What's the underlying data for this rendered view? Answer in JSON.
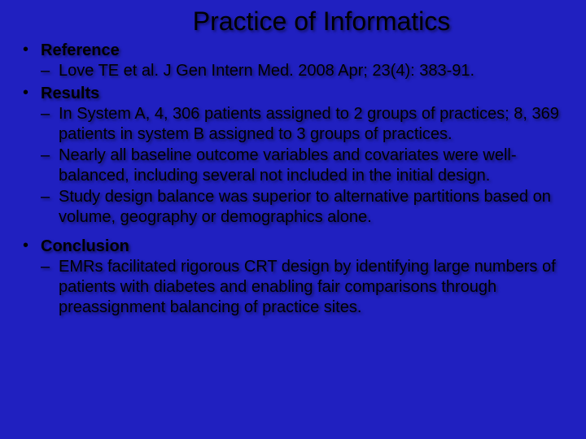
{
  "slide": {
    "title": "Practice of Informatics",
    "background_color": "#2020c0",
    "text_color": "#000000",
    "title_fontsize": 32,
    "body_fontsize": 20,
    "bullets": [
      {
        "heading": "Reference",
        "subs": [
          "Love TE et al. J Gen Intern Med. 2008 Apr; 23(4): 383-91."
        ]
      },
      {
        "heading": "Results",
        "subs": [
          "In System A, 4, 306 patients assigned to 2 groups of practices; 8, 369 patients in system B assigned to 3 groups of practices.",
          "Nearly all baseline outcome variables and covariates were well-balanced, including several not included in the initial design.",
          "Study design balance was superior to alternative partitions based on volume, geography or demographics alone."
        ]
      },
      {
        "heading": "Conclusion",
        "subs": [
          "EMRs facilitated rigorous CRT design by identifying large numbers of patients with diabetes and enabling fair comparisons through preassignment balancing of practice sites."
        ]
      }
    ]
  }
}
